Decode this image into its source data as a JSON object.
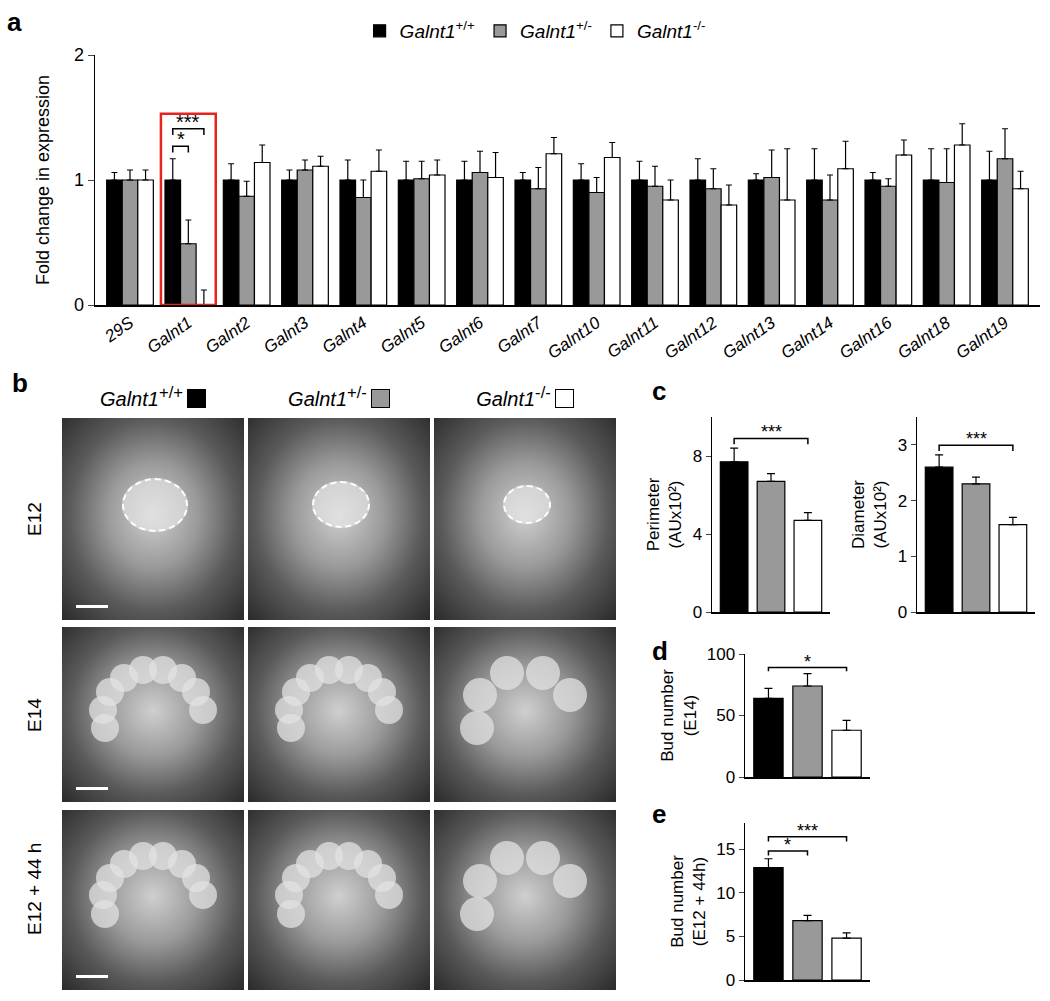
{
  "chart_data": [
    {
      "panel": "a",
      "type": "bar",
      "y_label": "Fold change in expression",
      "categories": [
        "29S",
        "Galnt1",
        "Galnt2",
        "Galnt3",
        "Galnt4",
        "Galnt5",
        "Galnt6",
        "Galnt7",
        "Galnt10",
        "Galnt11",
        "Galnt12",
        "Galnt13",
        "Galnt14",
        "Galnt16",
        "Galnt18",
        "Galnt19"
      ],
      "series": [
        {
          "name": "Galnt1+/+",
          "color": "#000000",
          "values": [
            1,
            1,
            1,
            1,
            1,
            1,
            1,
            1,
            1,
            1,
            1,
            1,
            1,
            1,
            1,
            1
          ],
          "errors": [
            0.06,
            0.17,
            0.13,
            0.08,
            0.16,
            0.15,
            0.15,
            0.06,
            0.13,
            0.15,
            0.17,
            0.05,
            0.25,
            0.06,
            0.25,
            0.23
          ]
        },
        {
          "name": "Galnt1+/-",
          "color": "#999999",
          "values": [
            1,
            0.49,
            0.87,
            1.08,
            0.86,
            1.01,
            1.06,
            0.93,
            0.9,
            0.95,
            0.93,
            1.02,
            0.84,
            0.95,
            0.98,
            1.17
          ],
          "errors": [
            0.08,
            0.19,
            0.12,
            0.08,
            0.14,
            0.14,
            0.17,
            0.17,
            0.12,
            0.16,
            0.16,
            0.22,
            0.2,
            0.06,
            0.27,
            0.24
          ]
        },
        {
          "name": "Galnt1-/-",
          "color": "#ffffff",
          "values": [
            1,
            0,
            1.14,
            1.11,
            1.07,
            1.04,
            1.02,
            1.21,
            1.18,
            0.84,
            0.8,
            0.84,
            1.09,
            1.2,
            1.28,
            0.93
          ],
          "errors": [
            0.08,
            0.12,
            0.14,
            0.08,
            0.17,
            0.12,
            0.2,
            0.13,
            0.12,
            0.16,
            0.16,
            0.41,
            0.22,
            0.12,
            0.17,
            0.14
          ]
        }
      ],
      "ylim": [
        0,
        2
      ],
      "yticks": [
        0,
        1,
        2
      ],
      "legend": "top",
      "significance": [
        {
          "category": "Galnt1",
          "between": [
            "Galnt1+/+",
            "Galnt1+/-"
          ],
          "label": "*"
        },
        {
          "category": "Galnt1",
          "between": [
            "Galnt1+/+",
            "Galnt1-/-"
          ],
          "label": "***"
        }
      ]
    },
    {
      "panel": "c",
      "type": "bar",
      "y_label": "Perimeter\n(AUx10²)",
      "categories": [
        "Galnt1+/+",
        "Galnt1+/-",
        "Galnt1-/-"
      ],
      "values": [
        7.7,
        6.7,
        4.7
      ],
      "errors": [
        0.7,
        0.4,
        0.4
      ],
      "colors": [
        "#000000",
        "#999999",
        "#ffffff"
      ],
      "ylim": [
        0,
        10
      ],
      "yticks": [
        0,
        4,
        8
      ],
      "tick_labels": "y",
      "significance": [
        {
          "between": [
            "Galnt1+/+",
            "Galnt1-/-"
          ],
          "label": "***"
        }
      ]
    },
    {
      "type": "bar",
      "y_label": "Diameter\n(AUx10²)",
      "categories": [
        "Galnt1+/+",
        "Galnt1+/-",
        "Galnt1-/-"
      ],
      "values": [
        2.6,
        2.3,
        1.57
      ],
      "errors": [
        0.22,
        0.12,
        0.13
      ],
      "colors": [
        "#000000",
        "#999999",
        "#ffffff"
      ],
      "ylim": [
        0,
        3.5
      ],
      "yticks": [
        0,
        1,
        2,
        3
      ],
      "tick_labels": "y",
      "significance": [
        {
          "between": [
            "Galnt1+/+",
            "Galnt1-/-"
          ],
          "label": "***"
        }
      ]
    },
    {
      "panel": "d",
      "type": "bar",
      "y_label": "Bud number\n(E14)",
      "categories": [
        "Galnt1+/+",
        "Galnt1+/-",
        "Galnt1-/-"
      ],
      "values": [
        64,
        74,
        38
      ],
      "errors": [
        8,
        10,
        8
      ],
      "colors": [
        "#000000",
        "#999999",
        "#ffffff"
      ],
      "ylim": [
        0,
        100
      ],
      "yticks": [
        0,
        50,
        100
      ],
      "tick_labels": "y",
      "significance": [
        {
          "between": [
            "Galnt1+/+",
            "Galnt1-/-"
          ],
          "label": "*"
        }
      ]
    },
    {
      "panel": "e",
      "type": "bar",
      "y_label": "Bud number\n(E12 + 44h)",
      "categories": [
        "Galnt1+/+",
        "Galnt1+/-",
        "Galnt1-/-"
      ],
      "values": [
        12.9,
        6.8,
        4.8
      ],
      "errors": [
        1,
        0.6,
        0.6
      ],
      "colors": [
        "#000000",
        "#999999",
        "#ffffff"
      ],
      "ylim": [
        0,
        18
      ],
      "yticks": [
        0,
        5,
        10,
        15
      ],
      "tick_labels": "y",
      "significance": [
        {
          "between": [
            "Galnt1+/+",
            "Galnt1+/-"
          ],
          "label": "*"
        },
        {
          "between": [
            "Galnt1+/+",
            "Galnt1-/-"
          ],
          "label": "***"
        }
      ]
    }
  ],
  "image_panel": {
    "panel": "b",
    "columns": [
      {
        "name": "Galnt1+/+",
        "color": "#000000"
      },
      {
        "name": "Galnt1+/-",
        "color": "#999999"
      },
      {
        "name": "Galnt1-/-",
        "color": "#ffffff"
      }
    ],
    "rows": [
      "E12",
      "E14",
      "E12 + 44 h"
    ]
  }
}
